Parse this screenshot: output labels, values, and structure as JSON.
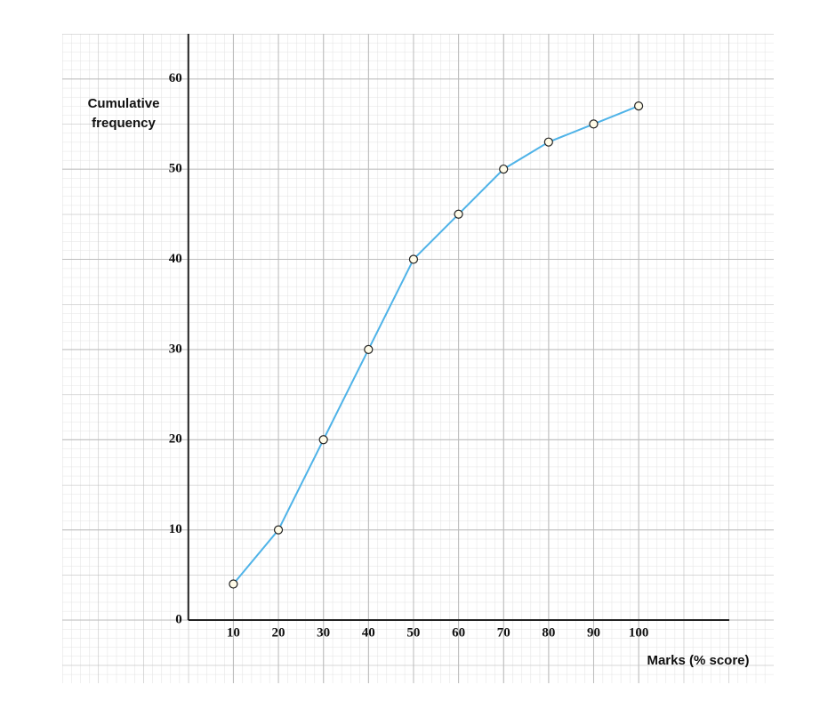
{
  "chart_data": {
    "type": "line",
    "x_label": "Marks (% score)",
    "y_label": "Cumulative frequency",
    "x": [
      10,
      20,
      30,
      40,
      50,
      60,
      70,
      80,
      90,
      100
    ],
    "series": [
      {
        "color": "#4fb3e8",
        "values": [
          4,
          10,
          20,
          30,
          40,
          45,
          50,
          53,
          55,
          57
        ]
      }
    ],
    "xlim": [
      -28,
      130
    ],
    "ylim": [
      -7,
      65
    ],
    "xticks": [
      10,
      20,
      30,
      40,
      50,
      60,
      70,
      80,
      90,
      100
    ],
    "yticks": [
      0,
      10,
      20,
      30,
      40,
      50,
      60
    ],
    "grid": true
  }
}
